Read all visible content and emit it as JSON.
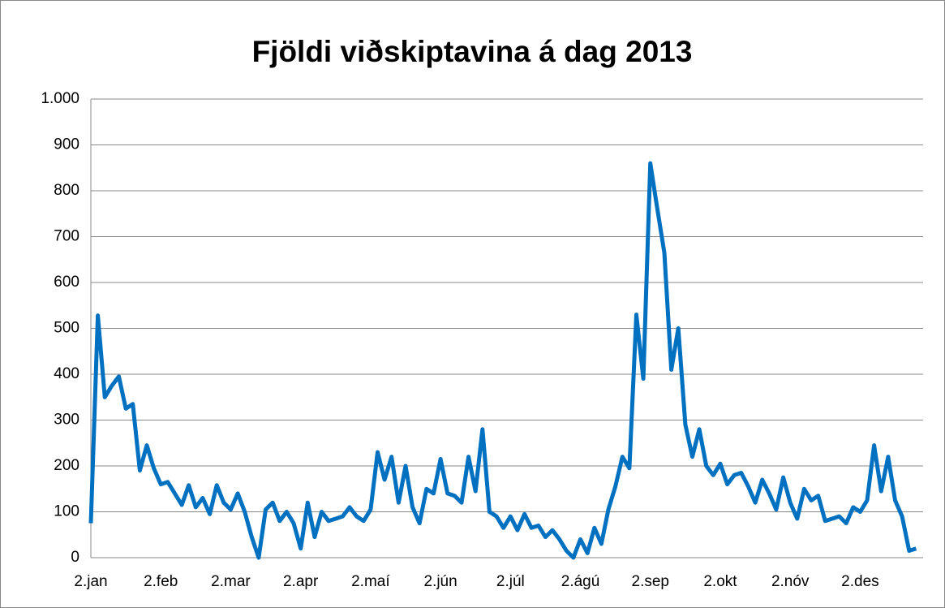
{
  "chart_data": {
    "type": "line",
    "title": "Fjöldi viðskiptavina á dag 2013",
    "categories": [
      "2.jan",
      null,
      null,
      null,
      null,
      null,
      null,
      null,
      null,
      null,
      "2.feb",
      null,
      null,
      null,
      null,
      null,
      null,
      null,
      null,
      null,
      "2.mar",
      null,
      null,
      null,
      null,
      null,
      null,
      null,
      null,
      null,
      "2.apr",
      null,
      null,
      null,
      null,
      null,
      null,
      null,
      null,
      null,
      "2.maí",
      null,
      null,
      null,
      null,
      null,
      null,
      null,
      null,
      null,
      "2.jún",
      null,
      null,
      null,
      null,
      null,
      null,
      null,
      null,
      null,
      "2.júl",
      null,
      null,
      null,
      null,
      null,
      null,
      null,
      null,
      null,
      "2.ágú",
      null,
      null,
      null,
      null,
      null,
      null,
      null,
      null,
      null,
      "2.sep",
      null,
      null,
      null,
      null,
      null,
      null,
      null,
      null,
      null,
      "2.okt",
      null,
      null,
      null,
      null,
      null,
      null,
      null,
      null,
      null,
      "2.nóv",
      null,
      null,
      null,
      null,
      null,
      null,
      null,
      null,
      null,
      "2.des",
      null,
      null,
      null,
      null,
      null,
      null,
      null,
      null
    ],
    "series": [
      {
        "color": "#0070c0",
        "values": [
          75,
          528,
          350,
          375,
          395,
          325,
          335,
          190,
          245,
          195,
          160,
          165,
          140,
          115,
          158,
          110,
          130,
          95,
          158,
          120,
          105,
          140,
          100,
          45,
          0,
          105,
          120,
          80,
          100,
          75,
          20,
          120,
          45,
          100,
          80,
          85,
          90,
          110,
          90,
          80,
          105,
          230,
          170,
          220,
          120,
          200,
          110,
          75,
          150,
          140,
          215,
          140,
          135,
          120,
          220,
          145,
          280,
          100,
          90,
          65,
          90,
          60,
          95,
          65,
          70,
          45,
          60,
          40,
          15,
          0,
          40,
          10,
          65,
          30,
          105,
          155,
          220,
          195,
          530,
          390,
          860,
          760,
          665,
          410,
          500,
          290,
          220,
          280,
          200,
          180,
          205,
          160,
          180,
          185,
          155,
          120,
          170,
          140,
          105,
          175,
          120,
          85,
          150,
          125,
          135,
          80,
          85,
          90,
          75,
          110,
          100,
          125,
          245,
          145,
          220,
          125,
          90,
          15,
          20
        ]
      }
    ],
    "ylim": [
      0,
      1000
    ],
    "yticks": [
      0,
      100,
      200,
      300,
      400,
      500,
      600,
      700,
      800,
      900,
      {
        "value": 1000,
        "label": "1.000"
      }
    ],
    "grid": true
  }
}
